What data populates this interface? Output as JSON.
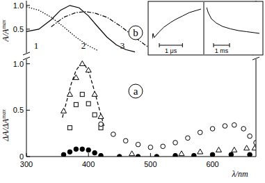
{
  "chart_data": [
    {
      "type": "scatter",
      "title": "a",
      "xlabel": "λ/nm",
      "ylabel": {
        "text": "ΔA/ΔA",
        "sup": "max"
      },
      "xlim": [
        300,
        670
      ],
      "ylim": [
        0,
        1.05
      ],
      "xticks": [
        300,
        400,
        500,
        600
      ],
      "yticks": [
        0,
        0.5,
        {
          "value": 1,
          "label": "1.0"
        }
      ],
      "series": [
        {
          "type": "line",
          "line_style": "dashed",
          "color": "#000000",
          "x": [
            358,
            365,
            372,
            380,
            388,
            395,
            402,
            410,
            418,
            425
          ],
          "values": [
            0.42,
            0.6,
            0.78,
            0.93,
            1.0,
            0.98,
            0.88,
            0.7,
            0.5,
            0.33
          ]
        },
        {
          "marker": "triangle-open",
          "color": "#000000",
          "x": [
            360,
            370,
            380,
            390,
            400,
            410,
            420,
            470,
            550,
            580,
            610,
            635,
            655,
            668
          ],
          "values": [
            0.49,
            0.67,
            0.85,
            1.0,
            0.93,
            0.67,
            0.43,
            0.03,
            0.03,
            0.05,
            0.07,
            0.07,
            0.09,
            0.09
          ]
        },
        {
          "marker": "square-open",
          "color": "#000000",
          "x": [
            370,
            380,
            390,
            400,
            410,
            420
          ],
          "values": [
            0.31,
            0.56,
            0.67,
            0.57,
            0.45,
            0.31
          ]
        },
        {
          "marker": "circle-open",
          "color": "#000000",
          "x": [
            420,
            440,
            460,
            480,
            500,
            520,
            540,
            560,
            580,
            600,
            620,
            635,
            650,
            660,
            670
          ],
          "values": [
            0.35,
            0.24,
            0.17,
            0.13,
            0.1,
            0.11,
            0.15,
            0.2,
            0.26,
            0.3,
            0.33,
            0.34,
            0.3,
            0.22,
            0.15
          ]
        },
        {
          "marker": "circle",
          "color": "#000000",
          "x": [
            360,
            370,
            380,
            390,
            400,
            410,
            420,
            450,
            480,
            510,
            540,
            570,
            600,
            630,
            660
          ],
          "values": [
            0.02,
            0.05,
            0.08,
            0.08,
            0.07,
            0.04,
            0.01,
            0.0,
            0.0,
            0.0,
            0.01,
            0.01,
            0.02,
            0.02,
            0.02
          ]
        }
      ]
    },
    {
      "type": "line",
      "title": "b",
      "ylabel": {
        "text": "A/A",
        "sup": "max"
      },
      "xlim": [
        300,
        670
      ],
      "ylim": [
        0,
        1.1
      ],
      "yticks": [
        0.5,
        {
          "value": 1,
          "label": "1.0"
        }
      ],
      "tick_labels": "y",
      "series": [
        {
          "name": "1",
          "line_style": "dotted",
          "color": "#000000",
          "x": [
            300,
            320,
            340,
            360,
            380,
            400,
            415
          ],
          "values": [
            0.97,
            0.9,
            0.75,
            0.55,
            0.33,
            0.15,
            0.05
          ]
        },
        {
          "name": "2",
          "line_style": "solid",
          "color": "#000000",
          "x": [
            300,
            320,
            340,
            355,
            370,
            385,
            400,
            415,
            430,
            445,
            460,
            475
          ],
          "values": [
            0.45,
            0.5,
            0.7,
            0.9,
            1.0,
            0.95,
            0.78,
            0.55,
            0.33,
            0.17,
            0.07,
            0.02
          ]
        },
        {
          "name": "3",
          "line_style": "dashdot",
          "color": "#000000",
          "x": [
            340,
            360,
            380,
            395,
            410,
            430,
            450,
            470,
            490,
            505
          ],
          "values": [
            0.55,
            0.75,
            0.85,
            0.87,
            0.84,
            0.75,
            0.58,
            0.38,
            0.18,
            0.05
          ]
        }
      ]
    },
    {
      "type": "line",
      "xlim": [
        0,
        2.1
      ],
      "ylim": [
        0,
        1
      ],
      "tick_labels": false,
      "scale_bar": {
        "value": 1,
        "label": "1 μs"
      },
      "series": [
        {
          "color": "#000000",
          "x": [
            0,
            0.03,
            0.08,
            0.3,
            0.5,
            0.8,
            1.0,
            1.3,
            1.6,
            1.9,
            2.1
          ],
          "values": [
            0.05,
            0.2,
            0.08,
            0.25,
            0.38,
            0.52,
            0.6,
            0.7,
            0.8,
            0.86,
            0.9
          ]
        }
      ]
    },
    {
      "type": "line",
      "xlim": [
        0,
        3.3
      ],
      "ylim": [
        0,
        1
      ],
      "tick_labels": false,
      "scale_bar": {
        "value": 1,
        "label": "1 ms"
      },
      "series": [
        {
          "color": "#000000",
          "x": [
            0,
            0.1,
            0.3,
            0.6,
            1.0,
            1.5,
            2.0,
            2.5,
            3.0,
            3.3
          ],
          "values": [
            0.95,
            0.8,
            0.62,
            0.5,
            0.4,
            0.33,
            0.28,
            0.25,
            0.22,
            0.2
          ]
        }
      ]
    }
  ]
}
